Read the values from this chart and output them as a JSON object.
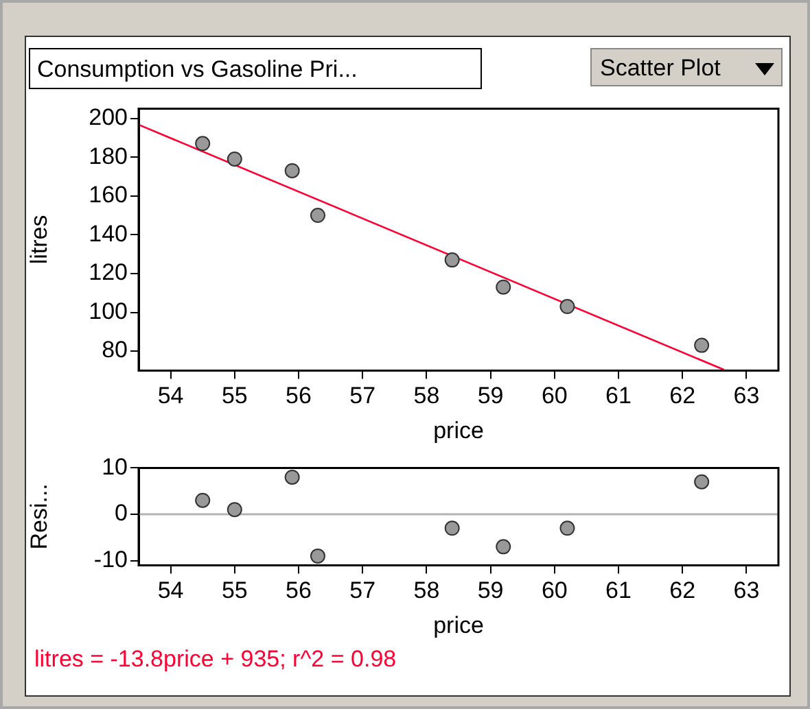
{
  "chart_data": [
    {
      "type": "scatter",
      "title": "Consumption vs Gasoline Pri...",
      "annotations": [
        "Scatter Plot"
      ],
      "xlabel": "price",
      "ylabel": "litres",
      "xlim": [
        53.5,
        63.5
      ],
      "xticks": [
        54,
        55,
        56,
        57,
        58,
        59,
        60,
        61,
        62,
        63
      ],
      "ylim": [
        70,
        205
      ],
      "yticks": [
        80,
        100,
        120,
        140,
        160,
        180,
        200
      ],
      "marker": "circle",
      "series": [
        {
          "color": "#999999",
          "x": [
            54.5,
            55,
            55.9,
            56.3,
            58.4,
            59.2,
            60.2,
            62.3
          ],
          "values": [
            187,
            179,
            173,
            150,
            127,
            113,
            103,
            83
          ]
        },
        {
          "type": "line",
          "marker": "none",
          "color": "#ff0033",
          "x": [
            53.5,
            62.65
          ],
          "values": [
            196.7,
            70.4
          ]
        }
      ]
    },
    {
      "type": "scatter",
      "xlabel": "price",
      "ylabel": "Resi...",
      "xlim": [
        53.5,
        63.5
      ],
      "xticks": [
        54,
        55,
        56,
        57,
        58,
        59,
        60,
        61,
        62,
        63
      ],
      "ylim": [
        -11,
        10
      ],
      "yticks": [
        -10,
        0,
        10
      ],
      "marker": "circle",
      "ref_lines": [
        {
          "axis": "y",
          "value": 0,
          "color": "#b4b4b4"
        }
      ],
      "annotations": [
        "litres = -13.8price + 935; r^2 = 0.98"
      ],
      "series": [
        {
          "color": "#999999",
          "x": [
            54.5,
            55,
            55.9,
            56.3,
            58.4,
            59.2,
            60.2,
            62.3
          ],
          "values": [
            3,
            1,
            8,
            -9,
            -3,
            -7,
            -3,
            7
          ]
        }
      ]
    }
  ]
}
